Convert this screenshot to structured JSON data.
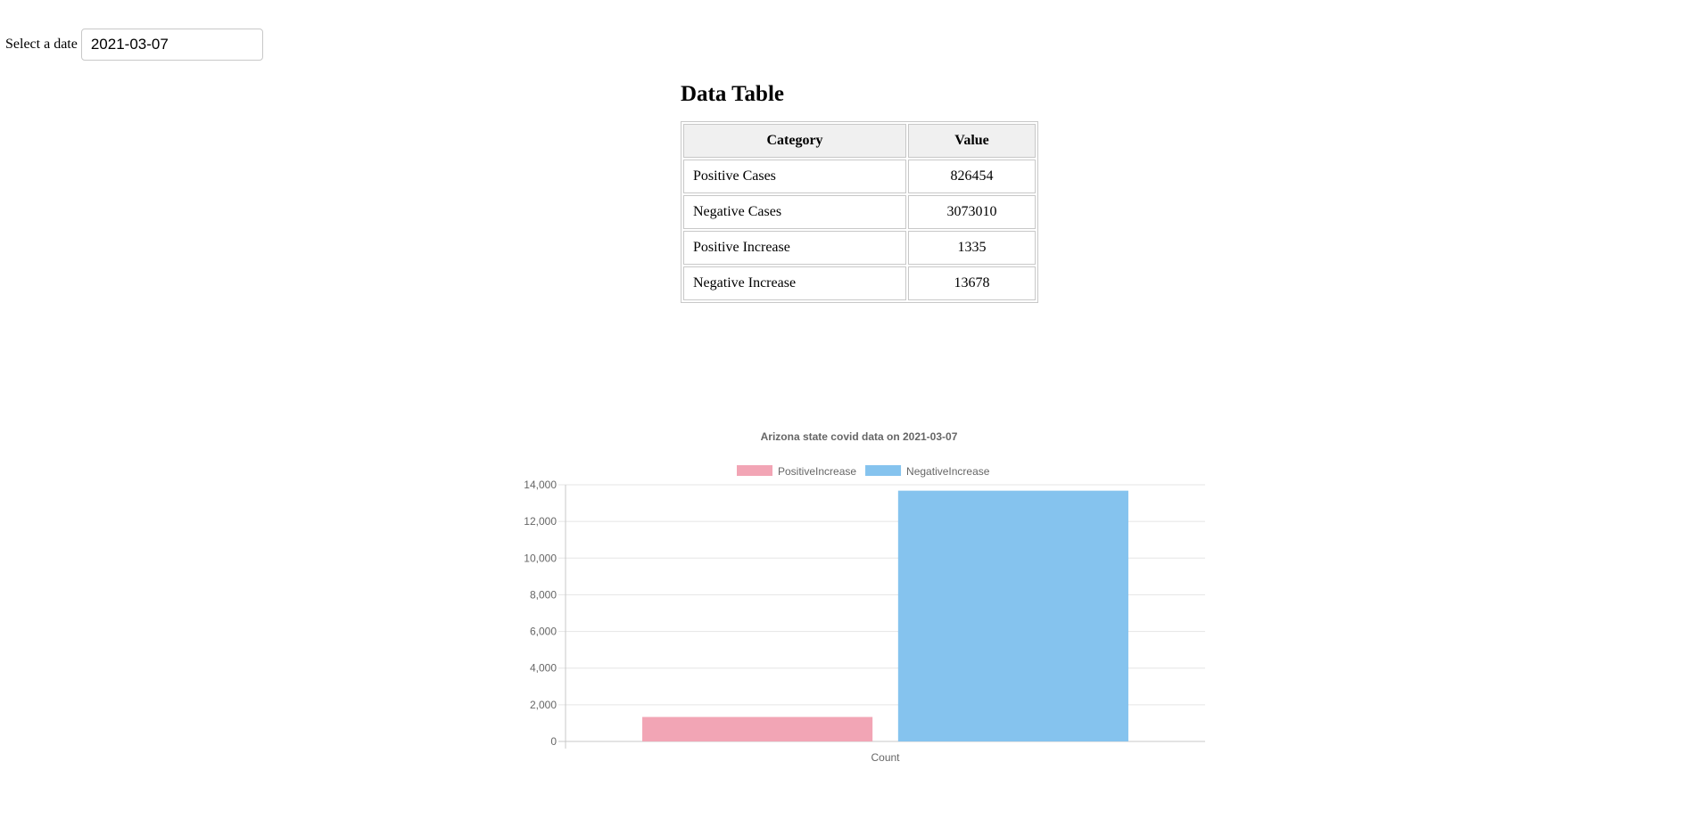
{
  "date_picker": {
    "label": "Select a date",
    "value": "2021-03-07"
  },
  "table": {
    "title": "Data Table",
    "headers": [
      "Category",
      "Value"
    ],
    "rows": [
      {
        "category": "Positive Cases",
        "value": "826454"
      },
      {
        "category": "Negative Cases",
        "value": "3073010"
      },
      {
        "category": "Positive Increase",
        "value": "1335"
      },
      {
        "category": "Negative Increase",
        "value": "13678"
      }
    ]
  },
  "chart_data": {
    "type": "bar",
    "title": "Arizona state covid data on 2021-03-07",
    "categories": [
      "Count"
    ],
    "series": [
      {
        "name": "PositiveIncrease",
        "values": [
          1335
        ],
        "color": "#f2a5b5"
      },
      {
        "name": "NegativeIncrease",
        "values": [
          13678
        ],
        "color": "#85c3ee"
      }
    ],
    "xlabel": "",
    "ylabel": "",
    "ylim": [
      0,
      14000
    ],
    "yticks": [
      "0",
      "2,000",
      "4,000",
      "6,000",
      "8,000",
      "10,000",
      "12,000",
      "14,000"
    ],
    "grid": true,
    "legend": "top"
  }
}
